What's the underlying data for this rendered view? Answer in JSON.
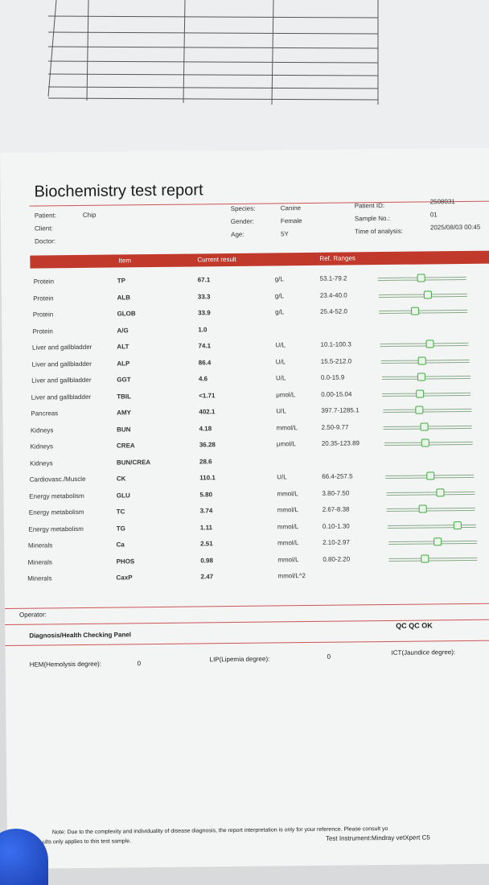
{
  "report": {
    "title": "Biochemistry test report",
    "patient_label": "Patient:",
    "patient_value": "Chip",
    "client_label": "Client:",
    "doctor_label": "Doctor:",
    "species_label": "Species:",
    "species_value": "Canine",
    "gender_label": "Gender:",
    "gender_value": "Female",
    "age_label": "Age:",
    "age_value": "5Y",
    "patient_id_label": "Patient ID:",
    "patient_id_value": "2508031",
    "sample_no_label": "Sample No.:",
    "sample_no_value": "01",
    "time_label": "Time of analysis:",
    "time_value": "2025/08/03 00:45"
  },
  "table_header": {
    "item": "Item",
    "result": "Current result",
    "ref": "Ref. Ranges"
  },
  "rows": [
    {
      "category": "Protein",
      "item": "TP",
      "result": "67.1",
      "unit": "g/L",
      "range": "53.1-79.2",
      "level": 0.48
    },
    {
      "category": "Protein",
      "item": "ALB",
      "result": "33.3",
      "unit": "g/L",
      "range": "23.4-40.0",
      "level": 0.55
    },
    {
      "category": "Protein",
      "item": "GLOB",
      "result": "33.9",
      "unit": "g/L",
      "range": "25.4-52.0",
      "level": 0.4
    },
    {
      "category": "Protein",
      "item": "A/G",
      "result": "1.0",
      "unit": "",
      "range": "",
      "level": null
    },
    {
      "category": "Liver and gallbladder",
      "item": "ALT",
      "result": "74.1",
      "unit": "U/L",
      "range": "10.1-100.3",
      "level": 0.55
    },
    {
      "category": "Liver and gallbladder",
      "item": "ALP",
      "result": "86.4",
      "unit": "U/L",
      "range": "15.5-212.0",
      "level": 0.45
    },
    {
      "category": "Liver and gallbladder",
      "item": "GGT",
      "result": "4.6",
      "unit": "U/L",
      "range": "0.0-15.9",
      "level": 0.44
    },
    {
      "category": "Liver and gallbladder",
      "item": "TBIL",
      "result": "<1.71",
      "unit": "μmol/L",
      "range": "0.00-15.04",
      "level": 0.42
    },
    {
      "category": "Pancreas",
      "item": "AMY",
      "result": "402.1",
      "unit": "U/L",
      "range": "397.7-1285.1",
      "level": 0.4
    },
    {
      "category": "Kidneys",
      "item": "BUN",
      "result": "4.18",
      "unit": "mmol/L",
      "range": "2.50-9.77",
      "level": 0.45
    },
    {
      "category": "Kidneys",
      "item": "CREA",
      "result": "36.28",
      "unit": "μmol/L",
      "range": "20.35-123.89",
      "level": 0.45
    },
    {
      "category": "Kidneys",
      "item": "BUN/CREA",
      "result": "28.6",
      "unit": "",
      "range": "",
      "level": null
    },
    {
      "category": "Cardiovasc./Muscle",
      "item": "CK",
      "result": "110.1",
      "unit": "U/L",
      "range": "66.4-257.5",
      "level": 0.5
    },
    {
      "category": "Energy metabolism",
      "item": "GLU",
      "result": "5.80",
      "unit": "mmol/L",
      "range": "3.80-7.50",
      "level": 0.6
    },
    {
      "category": "Energy metabolism",
      "item": "TC",
      "result": "3.74",
      "unit": "mmol/L",
      "range": "2.67-8.38",
      "level": 0.4
    },
    {
      "category": "Energy metabolism",
      "item": "TG",
      "result": "1.11",
      "unit": "mmol/L",
      "range": "0.10-1.30",
      "level": 0.78
    },
    {
      "category": "Minerals",
      "item": "Ca",
      "result": "2.51",
      "unit": "mmol/L",
      "range": "2.10-2.97",
      "level": 0.55
    },
    {
      "category": "Minerals",
      "item": "PHOS",
      "result": "0.98",
      "unit": "mmol/L",
      "range": "0.80-2.20",
      "level": 0.4
    },
    {
      "category": "Minerals",
      "item": "CaxP",
      "result": "2.47",
      "unit": "mmol/L^2",
      "range": "",
      "level": null
    }
  ],
  "footer": {
    "operator_label": "Operator:",
    "panel_title": "Diagnosis/Health Checking Panel",
    "qc": "QC QC OK",
    "hem_label": "HEM(Hemolysis degree):",
    "hem_value": "0",
    "lip_label": "LIP(Lipemia degree):",
    "lip_value": "0",
    "ict_label": "ICT(Jaundice degree):",
    "note_prefix": "Note:",
    "note_text": "Due to the complexity and individuality of disease diagnosis, the report interpretation is only for your reference. Please consult yo",
    "note_text2": "ults only applies to this test sample.",
    "instrument": "Test Instrument:Mindray vetXpert C5"
  },
  "colors": {
    "accent": "#c0392b",
    "gauge": "#4a4"
  }
}
